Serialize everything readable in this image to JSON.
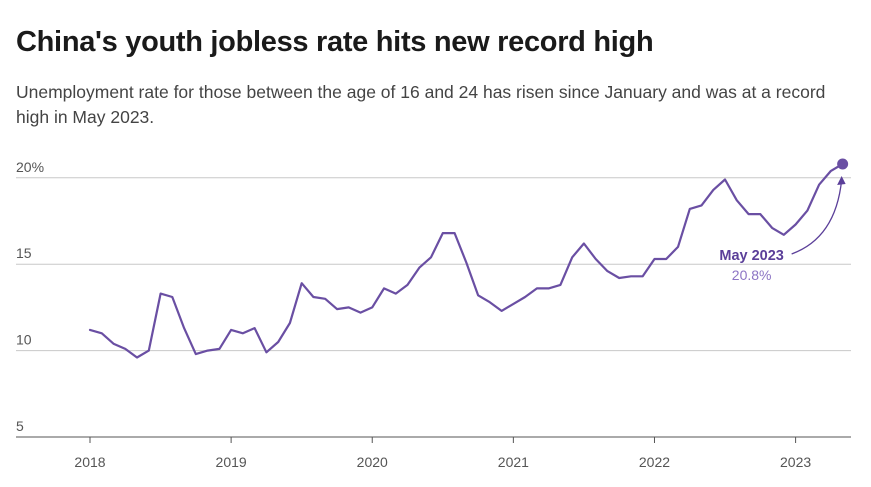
{
  "header": {
    "title": "China's youth jobless rate hits new record high",
    "subtitle": "Unemployment rate for those between the age of 16 and 24 has risen since January and was at a record high in May 2023."
  },
  "colors": {
    "line": "#6a4fa3",
    "annotation_label": "#5b3f99",
    "annotation_value": "#8c74c4",
    "grid": "#c8c8c8",
    "axis": "#555555"
  },
  "chart_data": {
    "type": "line",
    "x_start": "2018-01",
    "x_end": "2023-05",
    "x_tick_labels": [
      "2018",
      "2019",
      "2020",
      "2021",
      "2022",
      "2023"
    ],
    "y_tick_labels": [
      "20%",
      "15",
      "10",
      "5"
    ],
    "y_ticks": [
      20,
      15,
      10,
      5
    ],
    "ylim": [
      5,
      20.8
    ],
    "grid": "horizontal",
    "series": [
      {
        "x": [
          "2018-01",
          "2018-02",
          "2018-03",
          "2018-04",
          "2018-05",
          "2018-06",
          "2018-07",
          "2018-08",
          "2018-09",
          "2018-10",
          "2018-11",
          "2018-12",
          "2019-01",
          "2019-02",
          "2019-03",
          "2019-04",
          "2019-05",
          "2019-06",
          "2019-07",
          "2019-08",
          "2019-09",
          "2019-10",
          "2019-11",
          "2019-12",
          "2020-01",
          "2020-02",
          "2020-03",
          "2020-04",
          "2020-05",
          "2020-06",
          "2020-07",
          "2020-08",
          "2020-09",
          "2020-10",
          "2020-11",
          "2020-12",
          "2021-01",
          "2021-02",
          "2021-03",
          "2021-04",
          "2021-05",
          "2021-06",
          "2021-07",
          "2021-08",
          "2021-09",
          "2021-10",
          "2021-11",
          "2021-12",
          "2022-01",
          "2022-02",
          "2022-03",
          "2022-04",
          "2022-05",
          "2022-06",
          "2022-07",
          "2022-08",
          "2022-09",
          "2022-10",
          "2022-11",
          "2022-12",
          "2023-01",
          "2023-02",
          "2023-03",
          "2023-04",
          "2023-05"
        ],
        "values": [
          11.2,
          11.0,
          10.4,
          10.1,
          9.6,
          10.0,
          13.3,
          13.1,
          11.3,
          9.8,
          10.0,
          10.1,
          11.2,
          11.0,
          11.3,
          9.9,
          10.5,
          11.6,
          13.9,
          13.1,
          13.0,
          12.4,
          12.5,
          12.2,
          12.5,
          13.6,
          13.3,
          13.8,
          14.8,
          15.4,
          16.8,
          16.8,
          15.1,
          13.2,
          12.8,
          12.3,
          12.7,
          13.1,
          13.6,
          13.6,
          13.8,
          15.4,
          16.2,
          15.3,
          14.6,
          14.2,
          14.3,
          14.3,
          15.3,
          15.3,
          16.0,
          18.2,
          18.4,
          19.3,
          19.9,
          18.7,
          17.9,
          17.9,
          17.1,
          16.7,
          17.3,
          18.1,
          19.6,
          20.4,
          20.8
        ]
      }
    ],
    "annotation": {
      "label": "May 2023",
      "value_text": "20.8%",
      "x": "2023-05",
      "y": 20.8
    }
  }
}
